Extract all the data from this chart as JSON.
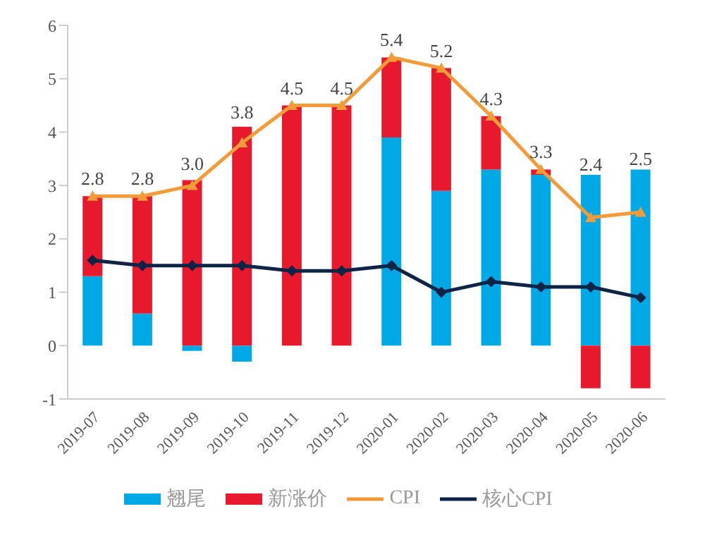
{
  "chart_data": {
    "type": "bar",
    "stacked": true,
    "categories": [
      "2019-07",
      "2019-08",
      "2019-09",
      "2019-10",
      "2019-11",
      "2019-12",
      "2020-01",
      "2020-02",
      "2020-03",
      "2020-04",
      "2020-05",
      "2020-06"
    ],
    "series": [
      {
        "name": "翘尾",
        "color": "#00a9e6",
        "values": [
          1.3,
          0.6,
          -0.1,
          -0.3,
          0,
          0,
          3.9,
          2.9,
          3.3,
          3.2,
          3.2,
          3.3
        ]
      },
      {
        "name": "新涨价",
        "color": "#e8192c",
        "values": [
          1.5,
          2.2,
          3.1,
          4.1,
          4.5,
          4.5,
          1.5,
          2.3,
          1.0,
          0.1,
          -0.8,
          -0.8
        ]
      },
      {
        "name": "CPI",
        "type": "line",
        "color": "#f29b38",
        "marker": "triangle",
        "values": [
          2.8,
          2.8,
          3.0,
          3.8,
          4.5,
          4.5,
          5.4,
          5.2,
          4.3,
          3.3,
          2.4,
          2.5
        ],
        "value_labels": [
          "2.8",
          "2.8",
          "3.0",
          "3.8",
          "4.5",
          "4.5",
          "5.4",
          "5.2",
          "4.3",
          "3.3",
          "2.4",
          "2.5"
        ]
      },
      {
        "name": "核心CPI",
        "type": "line",
        "color": "#0d2447",
        "marker": "diamond",
        "values": [
          1.6,
          1.5,
          1.5,
          1.5,
          1.4,
          1.4,
          1.5,
          1.0,
          1.2,
          1.1,
          1.1,
          0.9
        ]
      }
    ],
    "ylim": [
      -1,
      6
    ],
    "yticks": [
      -1,
      0,
      1,
      2,
      3,
      4,
      5,
      6
    ],
    "legend": "bottom"
  }
}
